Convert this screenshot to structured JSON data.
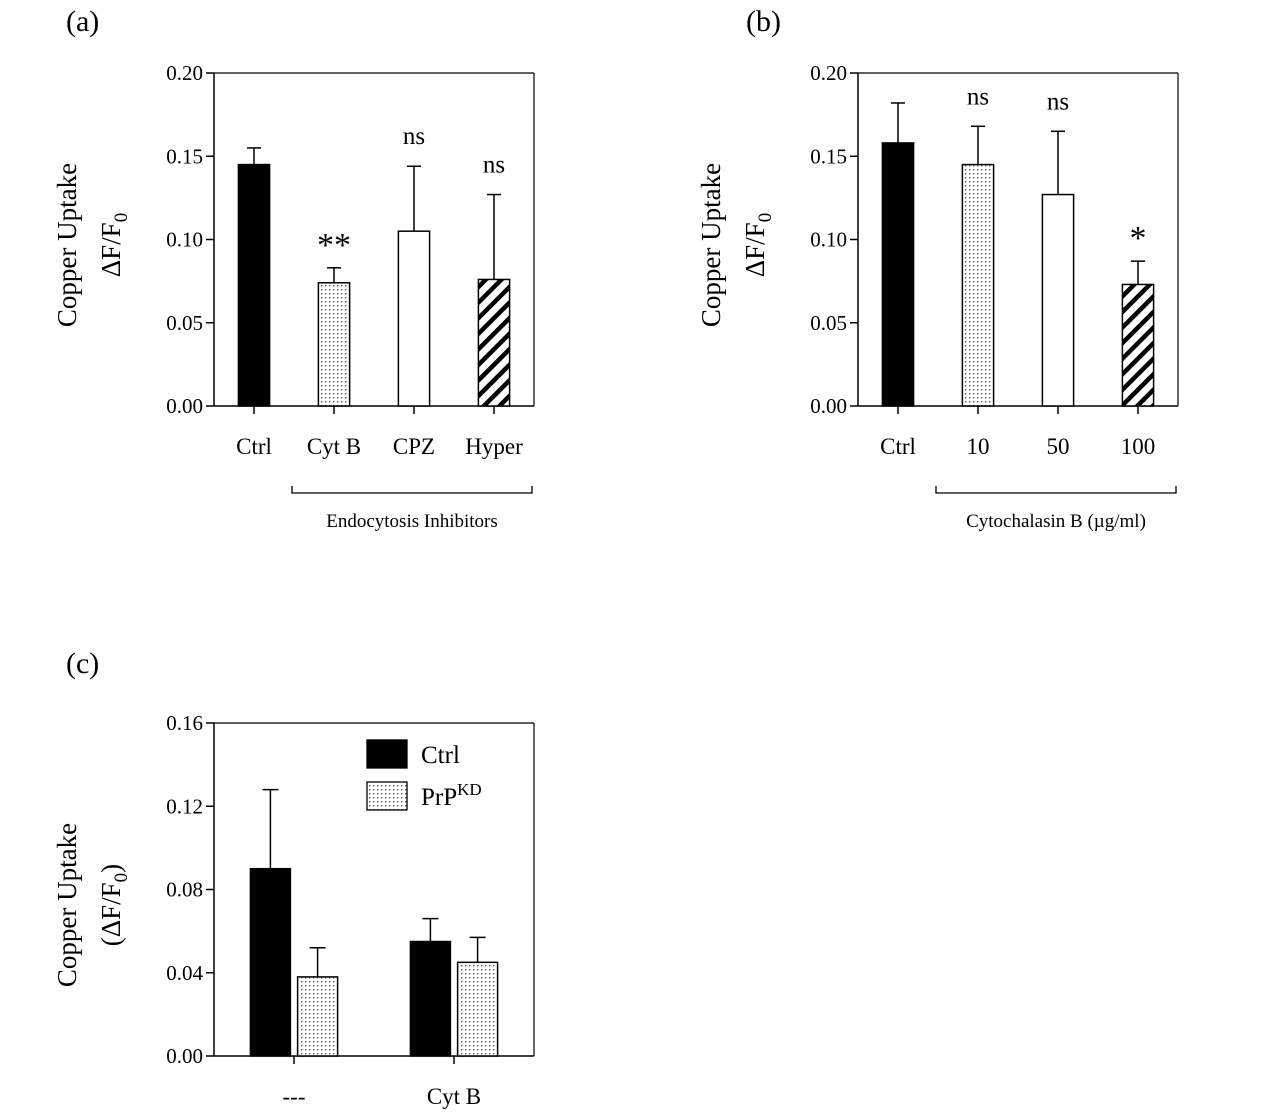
{
  "colors": {
    "solid": "#000000",
    "open": "#ffffff",
    "stroke": "#000000",
    "dots": "#555555"
  },
  "chart_data": [
    {
      "panel": "(a)",
      "type": "bar",
      "ylabel_lines": [
        "Copper Uptake",
        "ΔF/F",
        "0"
      ],
      "ylim": [
        0,
        0.2
      ],
      "yticks": [
        "0.00",
        "0.05",
        "0.10",
        "0.15",
        "0.20"
      ],
      "categories": [
        "Ctrl",
        "Cyt B",
        "CPZ",
        "Hyper"
      ],
      "values": [
        0.145,
        0.074,
        0.105,
        0.076
      ],
      "errors": [
        0.01,
        0.009,
        0.039,
        0.051
      ],
      "fills": [
        "solid",
        "dots",
        "open",
        "hatch"
      ],
      "annotations": [
        "",
        "**",
        "ns",
        "ns"
      ],
      "bracket": {
        "label": "Endocytosis Inhibitors",
        "from": 1,
        "to": 3
      }
    },
    {
      "panel": "(b)",
      "type": "bar",
      "ylabel_lines": [
        "Copper Uptake",
        "ΔF/F",
        "0"
      ],
      "ylim": [
        0,
        0.2
      ],
      "yticks": [
        "0.00",
        "0.05",
        "0.10",
        "0.15",
        "0.20"
      ],
      "categories": [
        "Ctrl",
        "10",
        "50",
        "100"
      ],
      "values": [
        0.158,
        0.145,
        0.127,
        0.073
      ],
      "errors": [
        0.024,
        0.023,
        0.038,
        0.014
      ],
      "fills": [
        "solid",
        "dots",
        "open",
        "hatch"
      ],
      "annotations": [
        "",
        "ns",
        "ns",
        "*"
      ],
      "bracket": {
        "label": "Cytochalasin B (µg/ml)",
        "from": 1,
        "to": 3
      }
    },
    {
      "panel": "(c)",
      "type": "bar",
      "ylabel_lines": [
        "Copper Uptake",
        "(ΔF/F",
        "0",
        ")"
      ],
      "ylim": [
        0,
        0.16
      ],
      "yticks": [
        "0.00",
        "0.04",
        "0.08",
        "0.12",
        "0.16"
      ],
      "categories": [
        "---",
        "Cyt B"
      ],
      "series": [
        {
          "name": "Ctrl",
          "sup": "",
          "values": [
            0.09,
            0.055
          ],
          "errors": [
            0.038,
            0.011
          ],
          "fill": "solid"
        },
        {
          "name": "PrP",
          "sup": "KD",
          "values": [
            0.038,
            0.045
          ],
          "errors": [
            0.014,
            0.012
          ],
          "fill": "dots"
        }
      ],
      "legend": "top-right"
    }
  ]
}
